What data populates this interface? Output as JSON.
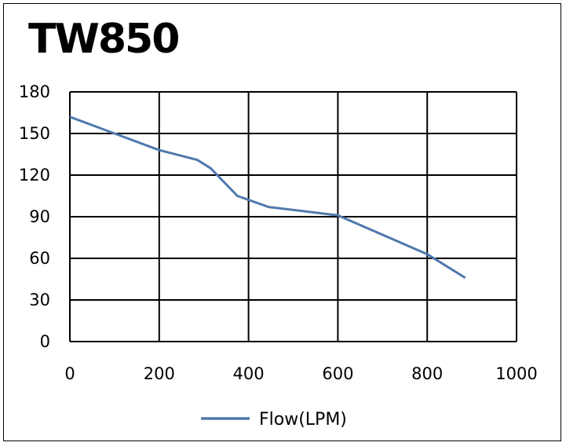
{
  "chart_data": {
    "type": "line",
    "title": "TW850",
    "xlabel": "",
    "ylabel": "",
    "xlim": [
      0,
      1000
    ],
    "ylim": [
      0,
      180
    ],
    "x_ticks": [
      "0",
      "200",
      "400",
      "600",
      "800",
      "1000"
    ],
    "y_ticks": [
      "0",
      "30",
      "60",
      "90",
      "120",
      "150",
      "180"
    ],
    "grid": true,
    "legend_position": "bottom",
    "series": [
      {
        "name": "Flow(LPM)",
        "color": "#4f79ad",
        "x": [
          0,
          100,
          200,
          285,
          315,
          375,
          445,
          600,
          700,
          800,
          885
        ],
        "y": [
          162,
          150,
          138,
          131,
          125,
          105,
          97,
          91,
          77,
          63,
          46
        ]
      }
    ]
  }
}
